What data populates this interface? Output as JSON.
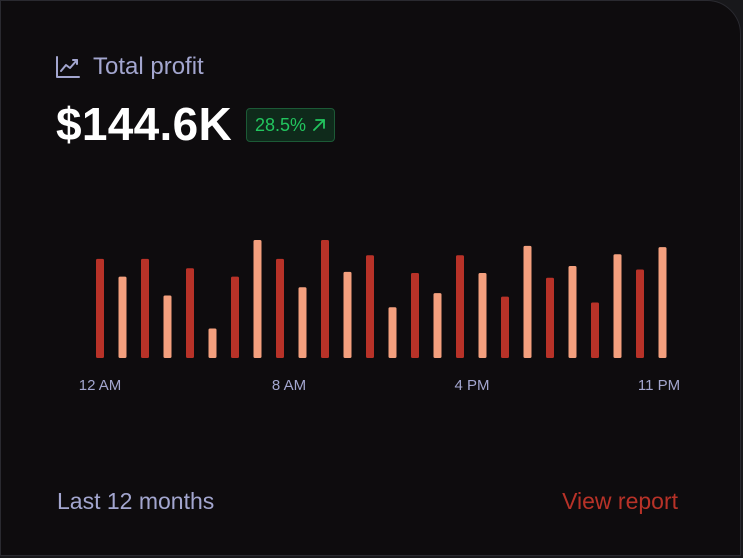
{
  "card": {
    "icon": "trend-line-icon",
    "title": "Total profit",
    "value": "$144.6K",
    "change": {
      "text": "28.5%",
      "icon": "arrow-up-right-icon",
      "color": "#22c55e"
    }
  },
  "chart_data": {
    "type": "bar",
    "x_ticks": [
      "12 AM",
      "8 AM",
      "4 PM",
      "11 PM"
    ],
    "values": [
      0.84,
      0.69,
      0.84,
      0.53,
      0.76,
      0.25,
      0.69,
      1.0,
      0.84,
      0.6,
      1.0,
      0.73,
      0.87,
      0.43,
      0.72,
      0.55,
      0.87,
      0.72,
      0.52,
      0.95,
      0.68,
      0.78,
      0.47,
      0.88,
      0.75,
      0.94
    ],
    "colors": [
      "#b83228",
      "#f4a07e"
    ],
    "ylim": [
      0,
      1
    ],
    "grid": false,
    "legend": "none"
  },
  "footer": {
    "period": "Last 12 months",
    "link": "View report",
    "link_color": "#b83228"
  }
}
